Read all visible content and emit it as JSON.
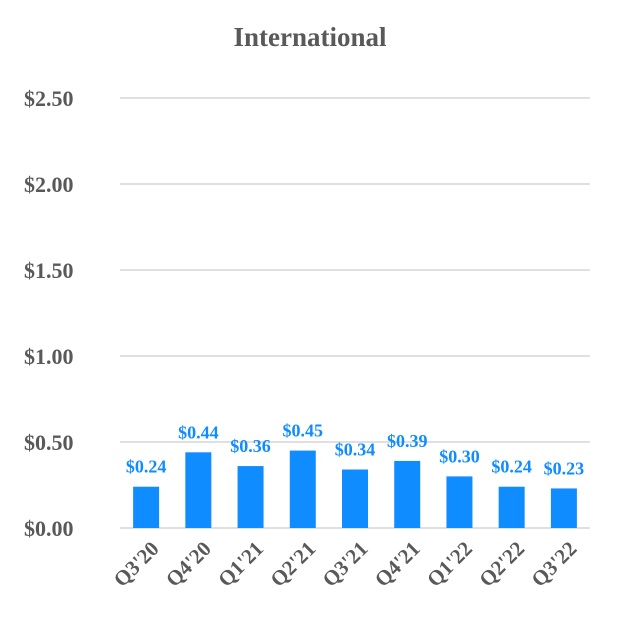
{
  "chart_data": {
    "type": "bar",
    "title": "International",
    "xlabel": "",
    "ylabel": "",
    "categories": [
      "Q3'20",
      "Q4'20",
      "Q1'21",
      "Q2'21",
      "Q3'21",
      "Q4'21",
      "Q1'22",
      "Q2'22",
      "Q3'22"
    ],
    "values": [
      0.24,
      0.44,
      0.36,
      0.45,
      0.34,
      0.39,
      0.3,
      0.24,
      0.23
    ],
    "data_labels": [
      "$0.24",
      "$0.44",
      "$0.36",
      "$0.45",
      "$0.34",
      "$0.39",
      "$0.30",
      "$0.24",
      "$0.23"
    ],
    "ylim": [
      0,
      2.5
    ],
    "yticks": [
      0,
      0.5,
      1.0,
      1.5,
      2.0,
      2.5
    ],
    "ytick_labels": [
      "$0.00",
      "$0.50",
      "$1.00",
      "$1.50",
      "$2.00",
      "$2.50"
    ],
    "grid": true,
    "legend": "none",
    "bar_color": "#0F8CFF",
    "label_color": "#0F8CFF",
    "grid_color": "#E0E0E0"
  }
}
